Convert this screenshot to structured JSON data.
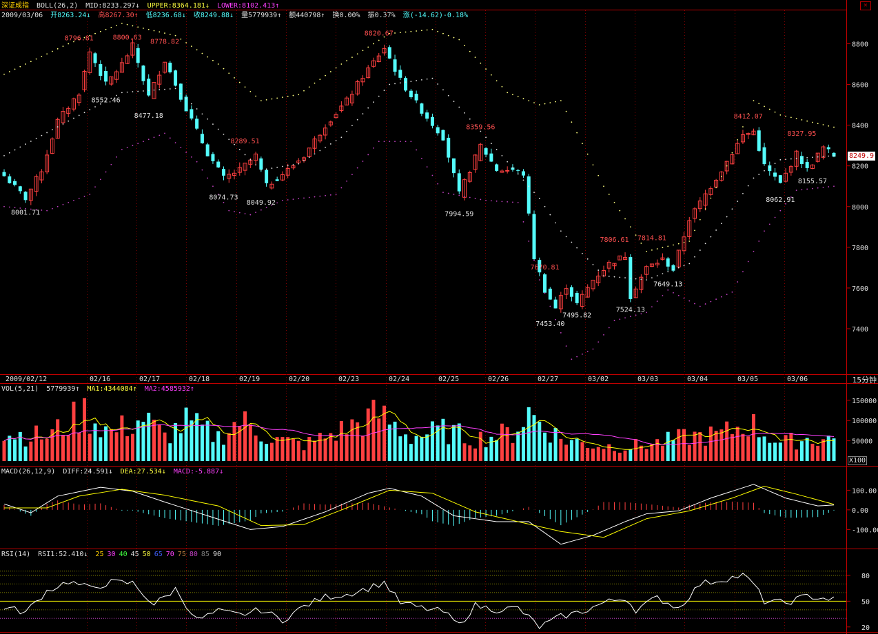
{
  "title": "深证成指",
  "boll": {
    "label": "BOLL(26,2)",
    "mid": "MID:8233.297↓",
    "upper": "UPPER:8364.181↓",
    "lower": "LOWER:8102.413↑"
  },
  "quote": {
    "date": "2009/03/06",
    "open": "开8263.24↓",
    "high": "高8267.30↑",
    "low": "低8236.68↓",
    "close": "收8249.88↓",
    "vol": "量5779939↑",
    "amt": "额440798↑",
    "turn": "换0.00%",
    "amp": "振0.37%",
    "chg": "涨(-14.62)-0.18%"
  },
  "vol_header": {
    "label": "VOL(5,21)",
    "value": "5779939↑",
    "ma1": "MA1:4344084↑",
    "ma2": "MA2:4585932↑"
  },
  "macd_header": {
    "label": "MACD(26,12,9)",
    "diff": "DIFF:24.591↓",
    "dea": "DEA:27.534↓",
    "macd": "MACD:-5.887↓"
  },
  "rsi_header": {
    "label": "RSI(14)",
    "rsi1": "RSI1:52.410↓",
    "levels": [
      "25",
      "30",
      "40",
      "45",
      "50",
      "65",
      "70",
      "75",
      "80",
      "85",
      "90"
    ]
  },
  "current_price": "8249.9",
  "period_label": "15分钟",
  "x100_label": "X100",
  "close_icon": "close-icon",
  "colors": {
    "up": "#ff4040",
    "down": "#54fcfc",
    "grid": "#800000",
    "axis": "#c00000",
    "text": "#c0c0c0",
    "upper": "#ffff80",
    "lower": "#c040c0",
    "ma1": "#ffff00",
    "ma2": "#ff40ff"
  },
  "chart_data": {
    "type": "candlestick",
    "price_axis": {
      "ticks": [
        7400,
        7600,
        7800,
        8000,
        8200,
        8400,
        8600,
        8800
      ],
      "range": [
        7180,
        8920
      ]
    },
    "date_labels": [
      "2009/02/12",
      "02/16",
      "02/17",
      "02/18",
      "02/19",
      "02/20",
      "02/23",
      "02/24",
      "02/25",
      "02/26",
      "02/27",
      "03/02",
      "03/03",
      "03/04",
      "03/05",
      "03/06"
    ],
    "volume_axis": {
      "ticks": [
        "150000",
        "100000",
        "50000"
      ],
      "values": [
        150000,
        100000,
        50000
      ],
      "range": [
        0,
        165000
      ]
    },
    "macd_axis": {
      "ticks": [
        "100.00",
        "0.00",
        "-100.00"
      ],
      "values": [
        100,
        0,
        -100
      ],
      "range": [
        -190,
        175
      ]
    },
    "rsi_axis": {
      "ticks": [
        "80",
        "50",
        "20"
      ],
      "values": [
        80,
        50,
        20
      ],
      "range": [
        15,
        100
      ]
    },
    "annotations": [
      {
        "text": "8001.71",
        "x": 4,
        "price": 8001.71,
        "type": "low"
      },
      {
        "text": "8796.81",
        "x": 14,
        "price": 8796.81,
        "type": "high"
      },
      {
        "text": "8552.46",
        "x": 19,
        "price": 8552.46,
        "type": "low"
      },
      {
        "text": "8800.63",
        "x": 23,
        "price": 8800.63,
        "type": "high"
      },
      {
        "text": "8477.18",
        "x": 27,
        "price": 8477.18,
        "type": "low"
      },
      {
        "text": "8778.82",
        "x": 30,
        "price": 8778.82,
        "type": "high"
      },
      {
        "text": "8074.73",
        "x": 41,
        "price": 8074.73,
        "type": "low"
      },
      {
        "text": "8289.51",
        "x": 45,
        "price": 8289.51,
        "type": "high"
      },
      {
        "text": "8049.92",
        "x": 48,
        "price": 8049.92,
        "type": "low"
      },
      {
        "text": "8820.67",
        "x": 70,
        "price": 8820.67,
        "type": "high"
      },
      {
        "text": "7994.59",
        "x": 85,
        "price": 7994.59,
        "type": "low"
      },
      {
        "text": "8359.56",
        "x": 89,
        "price": 8359.56,
        "type": "high"
      },
      {
        "text": "7670.81",
        "x": 101,
        "price": 7670.81,
        "type": "high"
      },
      {
        "text": "7453.40",
        "x": 102,
        "price": 7453.4,
        "type": "low"
      },
      {
        "text": "7495.82",
        "x": 107,
        "price": 7495.82,
        "type": "low"
      },
      {
        "text": "7806.61",
        "x": 114,
        "price": 7806.61,
        "type": "high"
      },
      {
        "text": "7524.13",
        "x": 117,
        "price": 7524.13,
        "type": "low"
      },
      {
        "text": "7814.81",
        "x": 121,
        "price": 7814.81,
        "type": "high"
      },
      {
        "text": "7649.13",
        "x": 124,
        "price": 7649.13,
        "type": "low"
      },
      {
        "text": "8412.07",
        "x": 139,
        "price": 8412.07,
        "type": "high"
      },
      {
        "text": "8062.91",
        "x": 145,
        "price": 8062.91,
        "type": "low"
      },
      {
        "text": "8327.95",
        "x": 149,
        "price": 8327.95,
        "type": "high"
      },
      {
        "text": "8155.57",
        "x": 151,
        "price": 8155.57,
        "type": "low"
      }
    ],
    "close_keyframes": [
      [
        0,
        8150
      ],
      [
        4,
        8040
      ],
      [
        7,
        8180
      ],
      [
        10,
        8420
      ],
      [
        14,
        8560
      ],
      [
        16,
        8760
      ],
      [
        19,
        8600
      ],
      [
        22,
        8700
      ],
      [
        24,
        8790
      ],
      [
        27,
        8540
      ],
      [
        30,
        8720
      ],
      [
        34,
        8480
      ],
      [
        38,
        8260
      ],
      [
        41,
        8140
      ],
      [
        44,
        8180
      ],
      [
        47,
        8250
      ],
      [
        49,
        8100
      ],
      [
        53,
        8180
      ],
      [
        56,
        8250
      ],
      [
        60,
        8400
      ],
      [
        64,
        8520
      ],
      [
        67,
        8640
      ],
      [
        71,
        8780
      ],
      [
        74,
        8620
      ],
      [
        78,
        8470
      ],
      [
        82,
        8340
      ],
      [
        85,
        8060
      ],
      [
        89,
        8300
      ],
      [
        92,
        8180
      ],
      [
        95,
        8180
      ],
      [
        97,
        8160
      ],
      [
        99,
        7750
      ],
      [
        101,
        7590
      ],
      [
        103,
        7500
      ],
      [
        105,
        7610
      ],
      [
        107,
        7520
      ],
      [
        110,
        7640
      ],
      [
        113,
        7720
      ],
      [
        116,
        7760
      ],
      [
        117,
        7560
      ],
      [
        120,
        7700
      ],
      [
        123,
        7740
      ],
      [
        125,
        7690
      ],
      [
        128,
        7940
      ],
      [
        131,
        8060
      ],
      [
        134,
        8180
      ],
      [
        138,
        8350
      ],
      [
        140,
        8370
      ],
      [
        142,
        8200
      ],
      [
        145,
        8110
      ],
      [
        148,
        8260
      ],
      [
        150,
        8180
      ],
      [
        153,
        8290
      ],
      [
        155,
        8250
      ]
    ],
    "upper_keyframes": [
      [
        0,
        8650
      ],
      [
        12,
        8800
      ],
      [
        22,
        8900
      ],
      [
        32,
        8840
      ],
      [
        40,
        8700
      ],
      [
        48,
        8520
      ],
      [
        55,
        8550
      ],
      [
        63,
        8700
      ],
      [
        72,
        8850
      ],
      [
        80,
        8870
      ],
      [
        85,
        8820
      ],
      [
        94,
        8560
      ],
      [
        100,
        8500
      ],
      [
        104,
        8520
      ],
      [
        112,
        8100
      ],
      [
        120,
        7780
      ],
      [
        128,
        7830
      ],
      [
        135,
        8200
      ],
      [
        140,
        8520
      ],
      [
        145,
        8450
      ],
      [
        155,
        8390
      ]
    ],
    "mid_keyframes": [
      [
        0,
        8250
      ],
      [
        12,
        8420
      ],
      [
        22,
        8560
      ],
      [
        32,
        8580
      ],
      [
        40,
        8380
      ],
      [
        48,
        8180
      ],
      [
        55,
        8210
      ],
      [
        63,
        8340
      ],
      [
        72,
        8600
      ],
      [
        80,
        8630
      ],
      [
        86,
        8460
      ],
      [
        94,
        8220
      ],
      [
        100,
        8040
      ],
      [
        104,
        7880
      ],
      [
        112,
        7660
      ],
      [
        120,
        7640
      ],
      [
        128,
        7720
      ],
      [
        135,
        7950
      ],
      [
        140,
        8140
      ],
      [
        145,
        8230
      ],
      [
        155,
        8250
      ]
    ],
    "lower_keyframes": [
      [
        0,
        8000
      ],
      [
        8,
        7980
      ],
      [
        16,
        8060
      ],
      [
        22,
        8280
      ],
      [
        30,
        8360
      ],
      [
        36,
        8220
      ],
      [
        42,
        7980
      ],
      [
        46,
        7960
      ],
      [
        52,
        8030
      ],
      [
        62,
        8060
      ],
      [
        70,
        8320
      ],
      [
        76,
        8320
      ],
      [
        82,
        8070
      ],
      [
        90,
        8030
      ],
      [
        96,
        8020
      ],
      [
        100,
        7640
      ],
      [
        106,
        7250
      ],
      [
        110,
        7300
      ],
      [
        114,
        7440
      ],
      [
        120,
        7480
      ],
      [
        124,
        7590
      ],
      [
        130,
        7510
      ],
      [
        136,
        7580
      ],
      [
        142,
        7880
      ],
      [
        148,
        8080
      ],
      [
        155,
        8100
      ]
    ],
    "volume_keyframes": [
      [
        0,
        70000
      ],
      [
        8,
        60000
      ],
      [
        15,
        120000
      ],
      [
        20,
        70000
      ],
      [
        26,
        105000
      ],
      [
        30,
        60000
      ],
      [
        34,
        95000
      ],
      [
        40,
        60000
      ],
      [
        44,
        100000
      ],
      [
        50,
        55000
      ],
      [
        56,
        40000
      ],
      [
        62,
        70000
      ],
      [
        70,
        115000
      ],
      [
        76,
        60000
      ],
      [
        82,
        75000
      ],
      [
        88,
        55000
      ],
      [
        95,
        70000
      ],
      [
        98,
        120000
      ],
      [
        104,
        55000
      ],
      [
        110,
        40000
      ],
      [
        116,
        35000
      ],
      [
        122,
        45000
      ],
      [
        128,
        60000
      ],
      [
        134,
        65000
      ],
      [
        139,
        95000
      ],
      [
        145,
        45000
      ],
      [
        150,
        55000
      ],
      [
        155,
        55000
      ]
    ],
    "macd_diff_keyframes": [
      [
        0,
        30
      ],
      [
        5,
        -15
      ],
      [
        10,
        70
      ],
      [
        18,
        115
      ],
      [
        24,
        95
      ],
      [
        30,
        40
      ],
      [
        38,
        -30
      ],
      [
        46,
        -100
      ],
      [
        52,
        -85
      ],
      [
        60,
        -10
      ],
      [
        68,
        85
      ],
      [
        72,
        110
      ],
      [
        78,
        70
      ],
      [
        84,
        -30
      ],
      [
        92,
        -60
      ],
      [
        98,
        -60
      ],
      [
        104,
        -175
      ],
      [
        110,
        -130
      ],
      [
        116,
        -60
      ],
      [
        120,
        -20
      ],
      [
        126,
        -5
      ],
      [
        132,
        60
      ],
      [
        140,
        130
      ],
      [
        146,
        60
      ],
      [
        152,
        20
      ],
      [
        155,
        25
      ]
    ],
    "macd_dea_keyframes": [
      [
        0,
        10
      ],
      [
        8,
        10
      ],
      [
        14,
        70
      ],
      [
        22,
        105
      ],
      [
        30,
        75
      ],
      [
        40,
        20
      ],
      [
        48,
        -80
      ],
      [
        56,
        -75
      ],
      [
        64,
        10
      ],
      [
        72,
        100
      ],
      [
        80,
        85
      ],
      [
        88,
        -10
      ],
      [
        96,
        -60
      ],
      [
        104,
        -110
      ],
      [
        112,
        -140
      ],
      [
        120,
        -45
      ],
      [
        128,
        -5
      ],
      [
        136,
        60
      ],
      [
        142,
        120
      ],
      [
        148,
        80
      ],
      [
        155,
        28
      ]
    ],
    "rsi_keyframes": [
      [
        0,
        43
      ],
      [
        4,
        37
      ],
      [
        8,
        62
      ],
      [
        12,
        73
      ],
      [
        16,
        65
      ],
      [
        20,
        72
      ],
      [
        24,
        71
      ],
      [
        28,
        46
      ],
      [
        32,
        64
      ],
      [
        36,
        28
      ],
      [
        40,
        38
      ],
      [
        44,
        34
      ],
      [
        48,
        40
      ],
      [
        52,
        28
      ],
      [
        56,
        44
      ],
      [
        60,
        55
      ],
      [
        64,
        58
      ],
      [
        68,
        65
      ],
      [
        71,
        72
      ],
      [
        74,
        48
      ],
      [
        78,
        42
      ],
      [
        82,
        38
      ],
      [
        85,
        22
      ],
      [
        88,
        45
      ],
      [
        92,
        40
      ],
      [
        96,
        42
      ],
      [
        100,
        20
      ],
      [
        104,
        32
      ],
      [
        108,
        38
      ],
      [
        112,
        48
      ],
      [
        116,
        54
      ],
      [
        118,
        40
      ],
      [
        122,
        54
      ],
      [
        126,
        42
      ],
      [
        130,
        70
      ],
      [
        134,
        75
      ],
      [
        138,
        80
      ],
      [
        140,
        70
      ],
      [
        142,
        50
      ],
      [
        146,
        48
      ],
      [
        150,
        56
      ],
      [
        155,
        52
      ]
    ]
  }
}
